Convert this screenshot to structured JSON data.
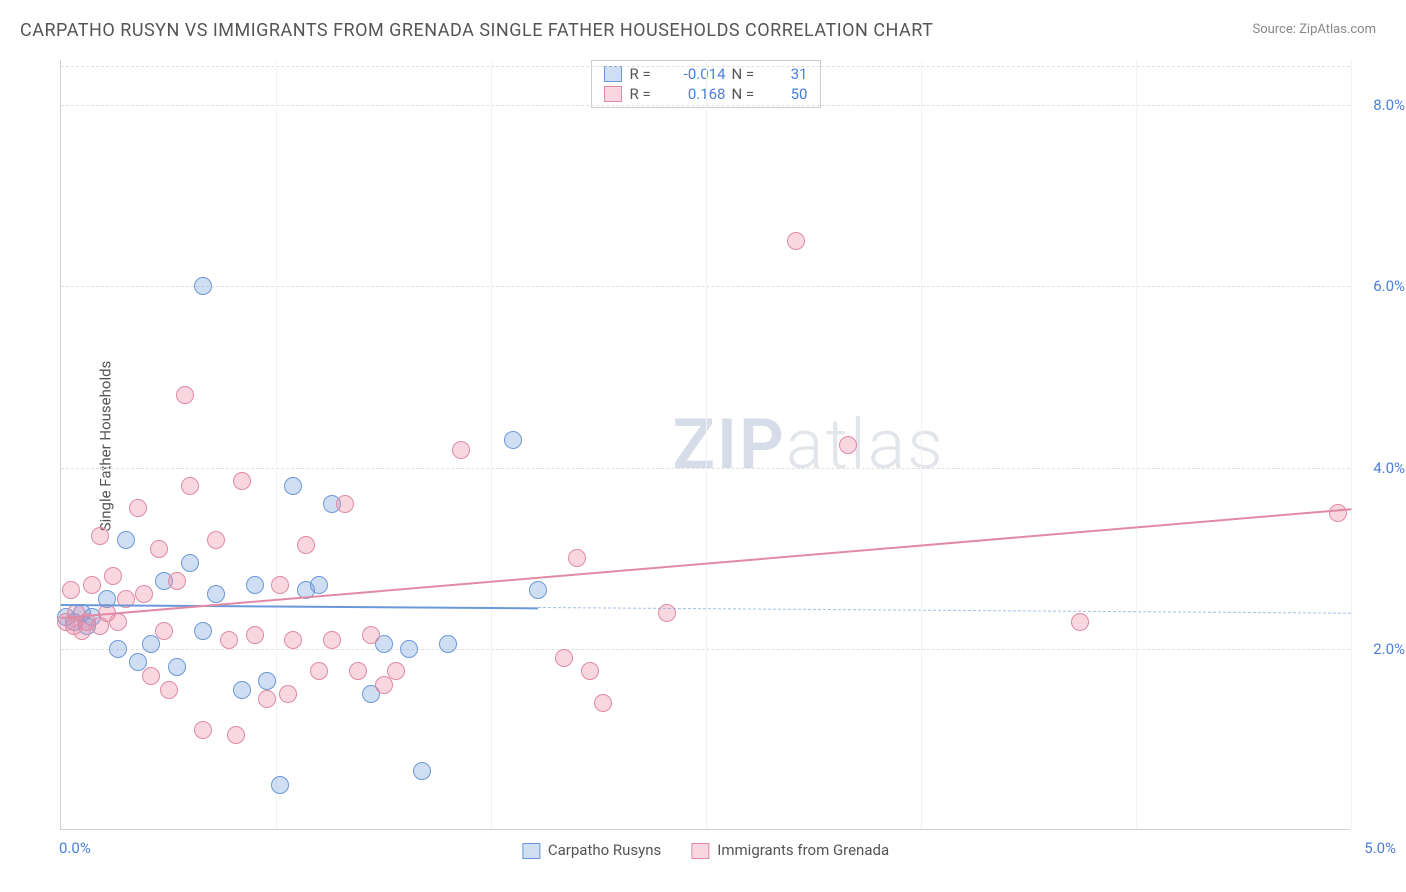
{
  "title": "CARPATHO RUSYN VS IMMIGRANTS FROM GRENADA SINGLE FATHER HOUSEHOLDS CORRELATION CHART",
  "source": "Source: ZipAtlas.com",
  "ylabel": "Single Father Households",
  "watermark_a": "ZIP",
  "watermark_b": "atlas",
  "x": {
    "min": 0,
    "max": 5.0,
    "ticks": [
      0.0,
      5.0
    ],
    "tick_labels": [
      "0.0%",
      "5.0%"
    ]
  },
  "y": {
    "min": 0,
    "max": 8.5,
    "ticks": [
      2.0,
      4.0,
      6.0,
      8.0
    ],
    "tick_labels": [
      "2.0%",
      "4.0%",
      "6.0%",
      "8.0%"
    ]
  },
  "series": [
    {
      "name": "Carpatho Rusyns",
      "fill": "rgba(120,160,220,0.35)",
      "stroke": "#6a98d8",
      "r_label": "R =",
      "r_value": "-0.014",
      "n_label": "N =",
      "n_value": "31",
      "trend": {
        "y_at_x0": 2.5,
        "y_at_xmax": 2.4,
        "solid_until_x": 1.85
      },
      "points": [
        [
          0.02,
          2.35
        ],
        [
          0.05,
          2.3
        ],
        [
          0.08,
          2.4
        ],
        [
          0.1,
          2.25
        ],
        [
          0.12,
          2.35
        ],
        [
          0.18,
          2.55
        ],
        [
          0.22,
          2.0
        ],
        [
          0.25,
          3.2
        ],
        [
          0.3,
          1.85
        ],
        [
          0.35,
          2.05
        ],
        [
          0.4,
          2.75
        ],
        [
          0.45,
          1.8
        ],
        [
          0.5,
          2.95
        ],
        [
          0.55,
          2.2
        ],
        [
          0.55,
          6.0
        ],
        [
          0.6,
          2.6
        ],
        [
          0.7,
          1.55
        ],
        [
          0.75,
          2.7
        ],
        [
          0.8,
          1.65
        ],
        [
          0.85,
          0.5
        ],
        [
          0.9,
          3.8
        ],
        [
          0.95,
          2.65
        ],
        [
          1.0,
          2.7
        ],
        [
          1.05,
          3.6
        ],
        [
          1.2,
          1.5
        ],
        [
          1.25,
          2.05
        ],
        [
          1.35,
          2.0
        ],
        [
          1.4,
          0.65
        ],
        [
          1.5,
          2.05
        ],
        [
          1.75,
          4.3
        ],
        [
          1.85,
          2.65
        ]
      ]
    },
    {
      "name": "Immigrants from Grenada",
      "fill": "rgba(235,140,165,0.35)",
      "stroke": "#e08aa5",
      "r_label": "R =",
      "r_value": "0.168",
      "n_label": "N =",
      "n_value": "50",
      "trend": {
        "y_at_x0": 2.35,
        "y_at_xmax": 3.55,
        "solid_until_x": 5.0
      },
      "points": [
        [
          0.02,
          2.3
        ],
        [
          0.04,
          2.65
        ],
        [
          0.05,
          2.25
        ],
        [
          0.06,
          2.4
        ],
        [
          0.08,
          2.2
        ],
        [
          0.1,
          2.3
        ],
        [
          0.12,
          2.7
        ],
        [
          0.15,
          3.25
        ],
        [
          0.15,
          2.25
        ],
        [
          0.18,
          2.4
        ],
        [
          0.2,
          2.8
        ],
        [
          0.22,
          2.3
        ],
        [
          0.25,
          2.55
        ],
        [
          0.3,
          3.55
        ],
        [
          0.32,
          2.6
        ],
        [
          0.35,
          1.7
        ],
        [
          0.38,
          3.1
        ],
        [
          0.4,
          2.2
        ],
        [
          0.42,
          1.55
        ],
        [
          0.45,
          2.75
        ],
        [
          0.48,
          4.8
        ],
        [
          0.5,
          3.8
        ],
        [
          0.55,
          1.1
        ],
        [
          0.6,
          3.2
        ],
        [
          0.65,
          2.1
        ],
        [
          0.68,
          1.05
        ],
        [
          0.7,
          3.85
        ],
        [
          0.75,
          2.15
        ],
        [
          0.8,
          1.45
        ],
        [
          0.85,
          2.7
        ],
        [
          0.88,
          1.5
        ],
        [
          0.9,
          2.1
        ],
        [
          0.95,
          3.15
        ],
        [
          1.0,
          1.75
        ],
        [
          1.05,
          2.1
        ],
        [
          1.1,
          3.6
        ],
        [
          1.15,
          1.75
        ],
        [
          1.2,
          2.15
        ],
        [
          1.25,
          1.6
        ],
        [
          1.3,
          1.75
        ],
        [
          1.55,
          4.2
        ],
        [
          1.95,
          1.9
        ],
        [
          2.0,
          3.0
        ],
        [
          2.05,
          1.75
        ],
        [
          2.1,
          1.4
        ],
        [
          2.35,
          2.4
        ],
        [
          2.85,
          6.5
        ],
        [
          3.05,
          4.25
        ],
        [
          3.95,
          2.3
        ],
        [
          4.95,
          3.5
        ]
      ]
    }
  ]
}
